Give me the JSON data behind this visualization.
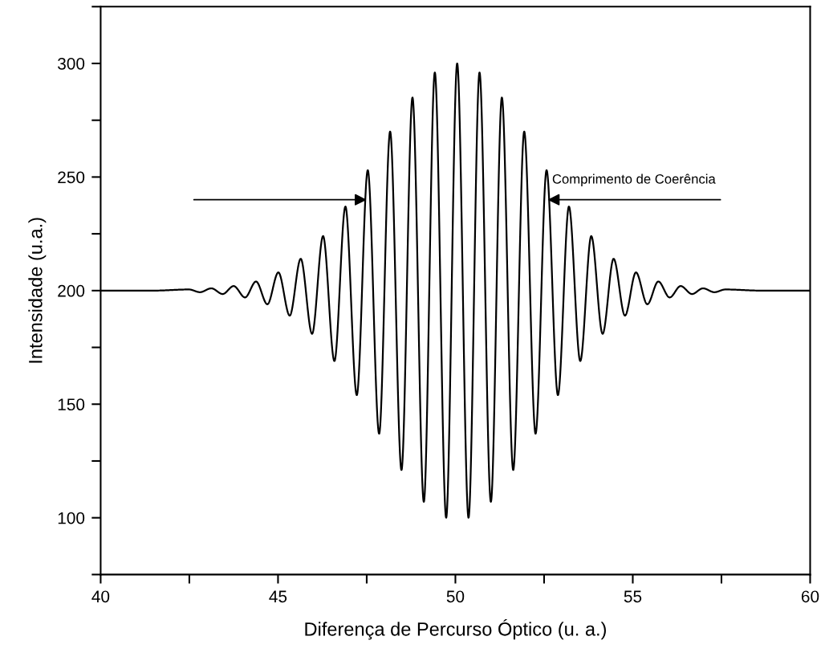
{
  "chart_data": {
    "type": "line",
    "xlabel": "Diferença de Percurso Óptico (u. a.)",
    "ylabel": "Intensidade (u.a.)",
    "x": [
      40,
      41.5,
      42.49,
      42.8,
      43.12,
      43.44,
      43.75,
      44.07,
      44.38,
      44.7,
      45.01,
      45.33,
      45.64,
      45.96,
      46.27,
      46.59,
      46.9,
      47.22,
      47.53,
      47.85,
      48.16,
      48.48,
      48.79,
      49.11,
      49.42,
      49.74,
      50.05,
      50.37,
      50.68,
      51.0,
      51.31,
      51.63,
      51.94,
      52.26,
      52.57,
      52.89,
      53.2,
      53.52,
      53.83,
      54.15,
      54.46,
      54.78,
      55.09,
      55.41,
      55.72,
      56.04,
      56.35,
      56.67,
      56.98,
      57.3,
      57.61,
      58.6,
      60
    ],
    "series": [
      {
        "color": "#000000",
        "values": [
          200,
          200,
          200.5,
          199.3,
          201,
          198.5,
          202,
          197,
          204,
          194,
          208,
          189,
          214,
          181,
          224,
          169,
          237,
          154,
          253,
          137,
          270,
          121,
          285,
          107,
          296,
          100,
          300,
          100,
          296,
          107,
          285,
          121,
          270,
          137,
          253,
          154,
          237,
          169,
          224,
          181,
          214,
          189,
          208,
          194,
          204,
          197,
          202,
          198.5,
          201,
          199.3,
          200.5,
          200,
          200
        ]
      }
    ],
    "xlim": [
      40,
      60
    ],
    "xticks": [
      40,
      {
        "value": 42.5,
        "label": null
      },
      45,
      {
        "value": 47.5,
        "label": null
      },
      50,
      {
        "value": 52.5,
        "label": null
      },
      55,
      {
        "value": 57.5,
        "label": null
      },
      60
    ],
    "ylim": [
      75,
      325
    ],
    "yticks": [
      {
        "value": 75,
        "label": null
      },
      100,
      {
        "value": 125,
        "label": null
      },
      150,
      {
        "value": 175,
        "label": null
      },
      200,
      {
        "value": 225,
        "label": null
      },
      250,
      {
        "value": 275,
        "label": null
      },
      300,
      {
        "value": 325,
        "label": null
      }
    ],
    "annotations": [
      {
        "text": "Comprimento de Coerência",
        "x": 52.6,
        "y": 240
      }
    ],
    "grid": false,
    "legend": false,
    "marker": "none",
    "line_style": "solid"
  }
}
